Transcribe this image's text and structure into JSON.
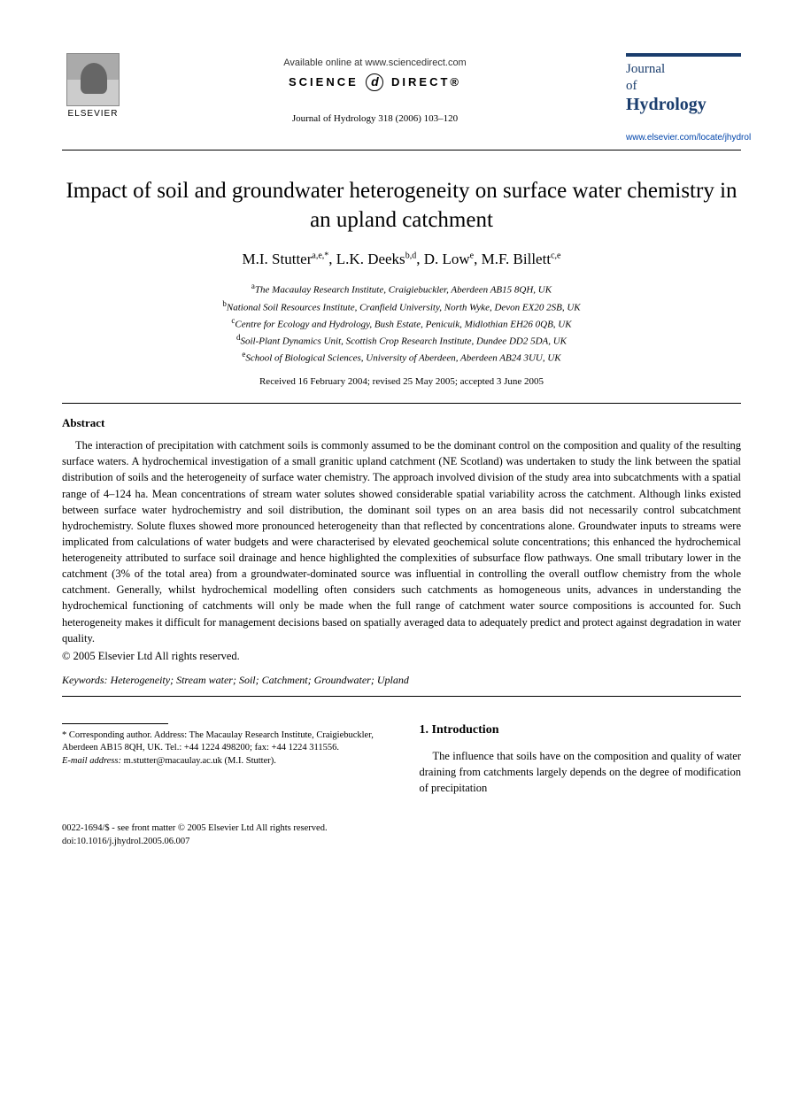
{
  "header": {
    "publisher_name": "ELSEVIER",
    "available_text": "Available online at www.sciencedirect.com",
    "science_direct_left": "SCIENCE",
    "science_direct_icon": "d",
    "science_direct_right": "DIRECT®",
    "citation": "Journal of Hydrology 318 (2006) 103–120",
    "journal_line1": "Journal",
    "journal_line2": "of",
    "journal_line3": "Hydrology",
    "journal_url": "www.elsevier.com/locate/jhydrol"
  },
  "title": "Impact of soil and groundwater heterogeneity on surface water chemistry in an upland catchment",
  "authors_html": "M.I. Stutter<sup>a,e,</sup>*, L.K. Deeks<sup>b,d</sup>, D. Low<sup>e</sup>, M.F. Billett<sup>c,e</sup>",
  "authors": [
    {
      "name": "M.I. Stutter",
      "sup": "a,e,*"
    },
    {
      "name": "L.K. Deeks",
      "sup": "b,d"
    },
    {
      "name": "D. Low",
      "sup": "e"
    },
    {
      "name": "M.F. Billett",
      "sup": "c,e"
    }
  ],
  "affiliations": [
    {
      "sup": "a",
      "text": "The Macaulay Research Institute, Craigiebuckler, Aberdeen AB15 8QH, UK"
    },
    {
      "sup": "b",
      "text": "National Soil Resources Institute, Cranfield University, North Wyke, Devon EX20 2SB, UK"
    },
    {
      "sup": "c",
      "text": "Centre for Ecology and Hydrology, Bush Estate, Penicuik, Midlothian EH26 0QB, UK"
    },
    {
      "sup": "d",
      "text": "Soil-Plant Dynamics Unit, Scottish Crop Research Institute, Dundee DD2 5DA, UK"
    },
    {
      "sup": "e",
      "text": "School of Biological Sciences, University of Aberdeen, Aberdeen AB24 3UU, UK"
    }
  ],
  "dates": "Received 16 February 2004; revised 25 May 2005; accepted 3 June 2005",
  "abstract": {
    "heading": "Abstract",
    "body": "The interaction of precipitation with catchment soils is commonly assumed to be the dominant control on the composition and quality of the resulting surface waters. A hydrochemical investigation of a small granitic upland catchment (NE Scotland) was undertaken to study the link between the spatial distribution of soils and the heterogeneity of surface water chemistry. The approach involved division of the study area into subcatchments with a spatial range of 4–124 ha. Mean concentrations of stream water solutes showed considerable spatial variability across the catchment. Although links existed between surface water hydrochemistry and soil distribution, the dominant soil types on an area basis did not necessarily control subcatchment hydrochemistry. Solute fluxes showed more pronounced heterogeneity than that reflected by concentrations alone. Groundwater inputs to streams were implicated from calculations of water budgets and were characterised by elevated geochemical solute concentrations; this enhanced the hydrochemical heterogeneity attributed to surface soil drainage and hence highlighted the complexities of subsurface flow pathways. One small tributary lower in the catchment (3% of the total area) from a groundwater-dominated source was influential in controlling the overall outflow chemistry from the whole catchment. Generally, whilst hydrochemical modelling often considers such catchments as homogeneous units, advances in understanding the hydrochemical functioning of catchments will only be made when the full range of catchment water source compositions is accounted for. Such heterogeneity makes it difficult for management decisions based on spatially averaged data to adequately predict and protect against degradation in water quality.",
    "copyright": "© 2005 Elsevier Ltd All rights reserved."
  },
  "keywords": {
    "label": "Keywords:",
    "list": "Heterogeneity; Stream water; Soil; Catchment; Groundwater; Upland"
  },
  "footnote": {
    "corr_label": "* Corresponding author.",
    "corr_text": " Address: The Macaulay Research Institute, Craigiebuckler, Aberdeen AB15 8QH, UK. Tel.: +44 1224 498200; fax: +44 1224 311556.",
    "email_label": "E-mail address:",
    "email": "m.stutter@macaulay.ac.uk (M.I. Stutter)."
  },
  "introduction": {
    "heading": "1. Introduction",
    "body": "The influence that soils have on the composition and quality of water draining from catchments largely depends on the degree of modification of precipitation"
  },
  "bottom": {
    "issn_line": "0022-1694/$ - see front matter © 2005 Elsevier Ltd All rights reserved.",
    "doi_line": "doi:10.1016/j.jhydrol.2005.06.007"
  },
  "colors": {
    "journal_blue": "#1a3d6d",
    "link_blue": "#0044aa",
    "text": "#000000",
    "background": "#ffffff"
  },
  "typography": {
    "title_fontsize": 25,
    "authors_fontsize": 17,
    "body_fontsize": 12.5,
    "affiliation_fontsize": 11,
    "footnote_fontsize": 10.5,
    "font_family": "Georgia, Times New Roman, serif"
  }
}
